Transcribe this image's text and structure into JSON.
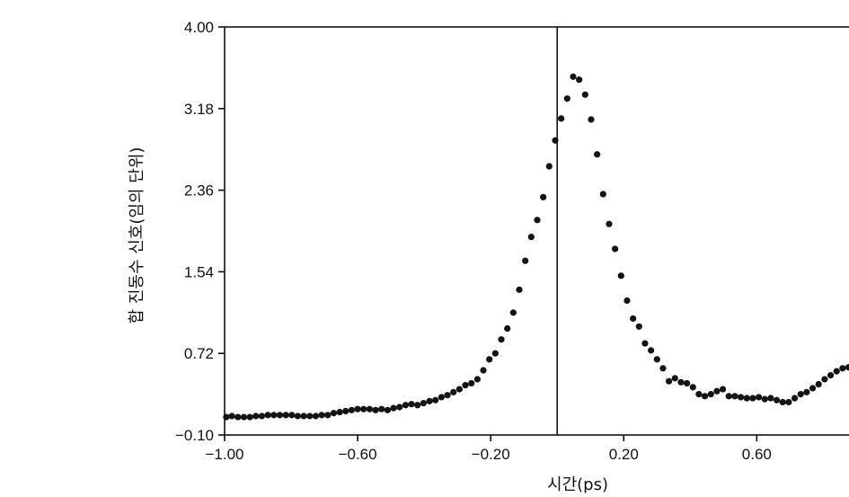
{
  "chart_data": {
    "type": "scatter",
    "title": "",
    "xlabel": "시간(ps)",
    "ylabel": "합 진동수 신호(임의 단위)",
    "xlim": [
      -1.0,
      0.88
    ],
    "ylim": [
      -0.1,
      4.0
    ],
    "xticks": [
      -1.0,
      -0.6,
      -0.2,
      0.2,
      0.6
    ],
    "xtick_labels": [
      "−1.00",
      "−0.60",
      "−0.20",
      "0.20",
      "0.60"
    ],
    "yticks": [
      4.0,
      3.18,
      2.36,
      1.54,
      0.72,
      -0.1
    ],
    "ytick_labels": [
      "4.00",
      "3.18",
      "2.36",
      "1.54",
      "0.72",
      "−0.10"
    ],
    "vertical_line_x": 0.0,
    "grid": false,
    "legend": "none",
    "marker_color": "#141414",
    "series": [
      {
        "points": [
          [
            -0.995,
            0.08
          ],
          [
            -0.978,
            0.09
          ],
          [
            -0.96,
            0.08
          ],
          [
            -0.942,
            0.08
          ],
          [
            -0.924,
            0.08
          ],
          [
            -0.906,
            0.09
          ],
          [
            -0.888,
            0.09
          ],
          [
            -0.87,
            0.1
          ],
          [
            -0.852,
            0.1
          ],
          [
            -0.834,
            0.1
          ],
          [
            -0.816,
            0.1
          ],
          [
            -0.798,
            0.1
          ],
          [
            -0.78,
            0.09
          ],
          [
            -0.762,
            0.09
          ],
          [
            -0.744,
            0.09
          ],
          [
            -0.726,
            0.09
          ],
          [
            -0.708,
            0.1
          ],
          [
            -0.69,
            0.1
          ],
          [
            -0.672,
            0.12
          ],
          [
            -0.654,
            0.13
          ],
          [
            -0.636,
            0.14
          ],
          [
            -0.618,
            0.15
          ],
          [
            -0.6,
            0.16
          ],
          [
            -0.582,
            0.16
          ],
          [
            -0.564,
            0.16
          ],
          [
            -0.546,
            0.15
          ],
          [
            -0.528,
            0.16
          ],
          [
            -0.51,
            0.15
          ],
          [
            -0.492,
            0.17
          ],
          [
            -0.474,
            0.18
          ],
          [
            -0.456,
            0.2
          ],
          [
            -0.438,
            0.21
          ],
          [
            -0.42,
            0.2
          ],
          [
            -0.402,
            0.22
          ],
          [
            -0.384,
            0.24
          ],
          [
            -0.366,
            0.25
          ],
          [
            -0.348,
            0.28
          ],
          [
            -0.33,
            0.3
          ],
          [
            -0.312,
            0.33
          ],
          [
            -0.294,
            0.36
          ],
          [
            -0.276,
            0.4
          ],
          [
            -0.258,
            0.42
          ],
          [
            -0.24,
            0.46
          ],
          [
            -0.222,
            0.55
          ],
          [
            -0.204,
            0.66
          ],
          [
            -0.186,
            0.72
          ],
          [
            -0.168,
            0.86
          ],
          [
            -0.15,
            0.97
          ],
          [
            -0.132,
            1.13
          ],
          [
            -0.114,
            1.36
          ],
          [
            -0.096,
            1.65
          ],
          [
            -0.078,
            1.89
          ],
          [
            -0.06,
            2.06
          ],
          [
            -0.042,
            2.29
          ],
          [
            -0.024,
            2.6
          ],
          [
            -0.006,
            2.86
          ],
          [
            0.012,
            3.08
          ],
          [
            0.03,
            3.28
          ],
          [
            0.048,
            3.5
          ],
          [
            0.066,
            3.47
          ],
          [
            0.084,
            3.32
          ],
          [
            0.102,
            3.07
          ],
          [
            0.12,
            2.72
          ],
          [
            0.138,
            2.32
          ],
          [
            0.156,
            2.02
          ],
          [
            0.174,
            1.77
          ],
          [
            0.192,
            1.5
          ],
          [
            0.21,
            1.25
          ],
          [
            0.228,
            1.07
          ],
          [
            0.246,
            0.99
          ],
          [
            0.264,
            0.82
          ],
          [
            0.282,
            0.75
          ],
          [
            0.3,
            0.66
          ],
          [
            0.318,
            0.57
          ],
          [
            0.336,
            0.44
          ],
          [
            0.354,
            0.47
          ],
          [
            0.372,
            0.43
          ],
          [
            0.39,
            0.42
          ],
          [
            0.408,
            0.38
          ],
          [
            0.426,
            0.31
          ],
          [
            0.444,
            0.29
          ],
          [
            0.462,
            0.31
          ],
          [
            0.48,
            0.34
          ],
          [
            0.498,
            0.36
          ],
          [
            0.516,
            0.29
          ],
          [
            0.534,
            0.29
          ],
          [
            0.552,
            0.28
          ],
          [
            0.57,
            0.27
          ],
          [
            0.588,
            0.27
          ],
          [
            0.606,
            0.28
          ],
          [
            0.624,
            0.26
          ],
          [
            0.642,
            0.27
          ],
          [
            0.66,
            0.25
          ],
          [
            0.678,
            0.23
          ],
          [
            0.696,
            0.23
          ],
          [
            0.714,
            0.27
          ],
          [
            0.732,
            0.31
          ],
          [
            0.75,
            0.33
          ],
          [
            0.768,
            0.37
          ],
          [
            0.786,
            0.41
          ],
          [
            0.804,
            0.46
          ],
          [
            0.822,
            0.5
          ],
          [
            0.84,
            0.54
          ],
          [
            0.858,
            0.57
          ],
          [
            0.876,
            0.58
          ]
        ]
      }
    ]
  }
}
